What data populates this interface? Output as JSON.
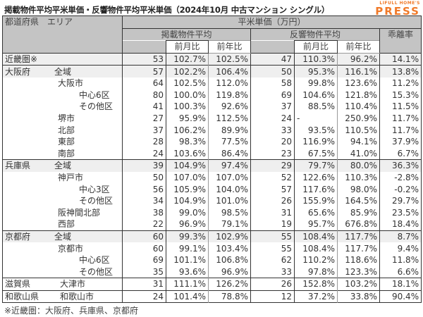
{
  "title": "掲載物件平均平米単価・反響物件平均平米単価（2024年10月 中古マンション シングル）",
  "logo": {
    "line1": "LIFULL HOME'S",
    "line2": "PRESS",
    "color": "#f07a2a"
  },
  "header": {
    "area_col": "都道府県　エリア",
    "price_group": "平米単価（万円）",
    "listed_avg": "掲載物件平均",
    "response_avg": "反響物件平均",
    "divergence": "乖離率",
    "mom": "前月比",
    "yoy": "前年比"
  },
  "rows": [
    {
      "pref": "近畿圏※",
      "area": "",
      "level": 0,
      "l_price": "53",
      "l_mom": "102.7%",
      "l_yoy": "102.5%",
      "r_price": "47",
      "r_mom": "110.3%",
      "r_yoy": "96.2%",
      "div": "14.1%"
    },
    {
      "pref": "大阪府",
      "area": "全域",
      "level": 0,
      "l_price": "57",
      "l_mom": "102.2%",
      "l_yoy": "106.4%",
      "r_price": "50",
      "r_mom": "95.3%",
      "r_yoy": "116.1%",
      "div": "13.8%"
    },
    {
      "pref": "",
      "area": "大阪市",
      "level": 1,
      "l_price": "64",
      "l_mom": "102.5%",
      "l_yoy": "112.0%",
      "r_price": "58",
      "r_mom": "99.8%",
      "r_yoy": "123.6%",
      "div": "11.2%"
    },
    {
      "pref": "",
      "area": "中心6区",
      "level": 2,
      "l_price": "80",
      "l_mom": "100.0%",
      "l_yoy": "119.8%",
      "r_price": "69",
      "r_mom": "104.6%",
      "r_yoy": "121.8%",
      "div": "15.3%"
    },
    {
      "pref": "",
      "area": "その他区",
      "level": 2,
      "l_price": "41",
      "l_mom": "100.3%",
      "l_yoy": "92.6%",
      "r_price": "37",
      "r_mom": "88.5%",
      "r_yoy": "110.4%",
      "div": "11.5%"
    },
    {
      "pref": "",
      "area": "堺市",
      "level": 1,
      "l_price": "27",
      "l_mom": "95.9%",
      "l_yoy": "112.5%",
      "r_price": "24",
      "r_mom": "-",
      "r_yoy": "250.9%",
      "div": "11.7%"
    },
    {
      "pref": "",
      "area": "北部",
      "level": 1,
      "l_price": "37",
      "l_mom": "106.2%",
      "l_yoy": "89.9%",
      "r_price": "33",
      "r_mom": "93.5%",
      "r_yoy": "110.5%",
      "div": "11.7%"
    },
    {
      "pref": "",
      "area": "東部",
      "level": 1,
      "l_price": "28",
      "l_mom": "98.3%",
      "l_yoy": "77.5%",
      "r_price": "20",
      "r_mom": "116.9%",
      "r_yoy": "94.1%",
      "div": "37.9%"
    },
    {
      "pref": "",
      "area": "南部",
      "level": 1,
      "l_price": "24",
      "l_mom": "103.6%",
      "l_yoy": "86.4%",
      "r_price": "23",
      "r_mom": "67.5%",
      "r_yoy": "41.0%",
      "div": "6.7%"
    },
    {
      "pref": "兵庫県",
      "area": "全域",
      "level": 0,
      "l_price": "39",
      "l_mom": "104.9%",
      "l_yoy": "97.4%",
      "r_price": "29",
      "r_mom": "79.7%",
      "r_yoy": "80.0%",
      "div": "36.3%"
    },
    {
      "pref": "",
      "area": "神戸市",
      "level": 1,
      "l_price": "50",
      "l_mom": "107.0%",
      "l_yoy": "107.0%",
      "r_price": "52",
      "r_mom": "122.6%",
      "r_yoy": "110.3%",
      "div": "-2.8%"
    },
    {
      "pref": "",
      "area": "中心3区",
      "level": 2,
      "l_price": "56",
      "l_mom": "105.9%",
      "l_yoy": "104.0%",
      "r_price": "57",
      "r_mom": "117.6%",
      "r_yoy": "98.0%",
      "div": "-0.2%"
    },
    {
      "pref": "",
      "area": "その他区",
      "level": 2,
      "l_price": "34",
      "l_mom": "104.9%",
      "l_yoy": "101.0%",
      "r_price": "26",
      "r_mom": "155.9%",
      "r_yoy": "164.5%",
      "div": "29.7%"
    },
    {
      "pref": "",
      "area": "阪神間北部",
      "level": 1,
      "l_price": "38",
      "l_mom": "99.0%",
      "l_yoy": "98.5%",
      "r_price": "31",
      "r_mom": "65.6%",
      "r_yoy": "85.9%",
      "div": "23.5%"
    },
    {
      "pref": "",
      "area": "西部",
      "level": 1,
      "l_price": "22",
      "l_mom": "96.9%",
      "l_yoy": "79.1%",
      "r_price": "19",
      "r_mom": "95.7%",
      "r_yoy": "676.8%",
      "div": "18.4%"
    },
    {
      "pref": "京都府",
      "area": "全域",
      "level": 0,
      "l_price": "60",
      "l_mom": "99.3%",
      "l_yoy": "102.9%",
      "r_price": "55",
      "r_mom": "108.4%",
      "r_yoy": "117.7%",
      "div": "8.7%"
    },
    {
      "pref": "",
      "area": "京都市",
      "level": 1,
      "l_price": "60",
      "l_mom": "99.1%",
      "l_yoy": "103.4%",
      "r_price": "55",
      "r_mom": "108.4%",
      "r_yoy": "117.7%",
      "div": "9.4%"
    },
    {
      "pref": "",
      "area": "中心6区",
      "level": 2,
      "l_price": "69",
      "l_mom": "101.1%",
      "l_yoy": "106.8%",
      "r_price": "62",
      "r_mom": "110.2%",
      "r_yoy": "118.6%",
      "div": "11.8%"
    },
    {
      "pref": "",
      "area": "その他区",
      "level": 2,
      "l_price": "35",
      "l_mom": "93.6%",
      "l_yoy": "96.9%",
      "r_price": "33",
      "r_mom": "97.8%",
      "r_yoy": "123.3%",
      "div": "6.6%"
    },
    {
      "pref": "滋賀県",
      "area": "大津市",
      "level": 1,
      "l_price": "31",
      "l_mom": "111.1%",
      "l_yoy": "126.2%",
      "r_price": "26",
      "r_mom": "152.8%",
      "r_yoy": "103.2%",
      "div": "18.1%"
    },
    {
      "pref": "和歌山県",
      "area": "和歌山市",
      "level": 1,
      "l_price": "24",
      "l_mom": "101.4%",
      "l_yoy": "78.8%",
      "r_price": "12",
      "r_mom": "37.2%",
      "r_yoy": "33.8%",
      "div": "90.4%"
    }
  ],
  "footer_note": "※近畿圏：大阪府、兵庫県、京都府"
}
